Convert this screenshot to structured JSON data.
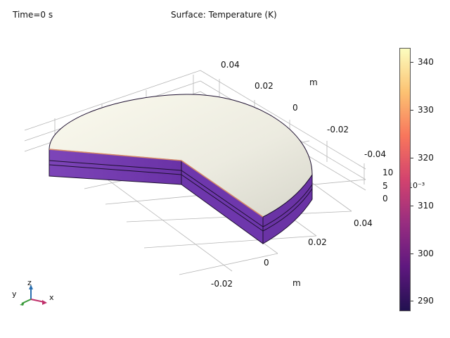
{
  "header": {
    "time_label": "Time=0 s",
    "surface_title": "Surface: Temperature (K)"
  },
  "axes": {
    "y_ticks": [
      "0.04",
      "0.02",
      "0",
      "-0.02",
      "-0.04"
    ],
    "y_unit": "m",
    "x_ticks": [
      "0.04",
      "0.02",
      "0",
      "-0.02"
    ],
    "x_unit": "m",
    "z_ticks": [
      "10",
      "5",
      "0"
    ],
    "z_scale": "10⁻³"
  },
  "colorbar": {
    "ticks": [
      "340",
      "330",
      "320",
      "310",
      "300",
      "290"
    ],
    "colors": [
      "#fcfdbf",
      "#fcc272",
      "#f8765c",
      "#d3436e",
      "#982d80",
      "#5f187f",
      "#221150"
    ]
  },
  "triad": {
    "x_label": "x",
    "y_label": "y",
    "z_label": "z"
  },
  "model": {
    "top_color": "#f0efe4",
    "side_color": "#7a3db0",
    "rim_color": "#e9a27c"
  }
}
